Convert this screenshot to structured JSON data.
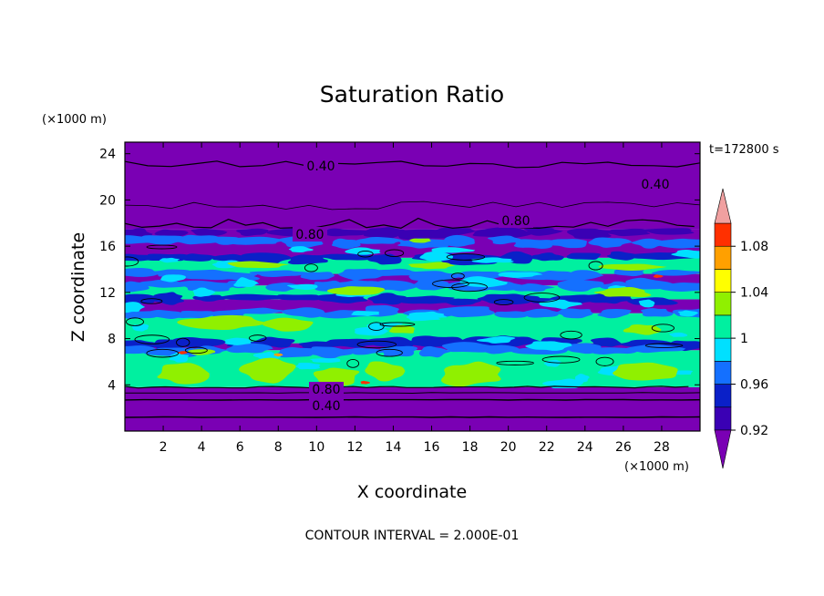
{
  "chart_data": {
    "type": "heatmap",
    "title": "Saturation Ratio",
    "xlabel": "X coordinate",
    "ylabel": "Z coordinate",
    "x_unit": "(×1000 m)",
    "y_unit": "(×1000 m)",
    "time_label": "t=172800 s",
    "footnote": "CONTOUR INTERVAL = 2.000E-01",
    "xlim": [
      0,
      30
    ],
    "ylim": [
      0,
      25
    ],
    "x_ticks": [
      "2",
      "4",
      "6",
      "8",
      "10",
      "12",
      "14",
      "16",
      "18",
      "20",
      "22",
      "24",
      "26",
      "28"
    ],
    "y_ticks": [
      "4",
      "8",
      "12",
      "16",
      "20",
      "24"
    ],
    "colorbar": {
      "levels": [
        0.92,
        0.94,
        0.96,
        0.98,
        1.0,
        1.02,
        1.04,
        1.06,
        1.08,
        1.1
      ],
      "tick_labels": [
        "0.92",
        "0.96",
        "1",
        "1.04",
        "1.08"
      ],
      "colors": [
        "#7a00b4",
        "#3a00b4",
        "#0a20c8",
        "#1470ff",
        "#00e0ff",
        "#00f0a0",
        "#90f000",
        "#ffff00",
        "#ffa000",
        "#ff3000",
        "#f0a0a0"
      ],
      "extend": "both"
    },
    "contour_labels": [
      "0.40",
      "0.40",
      "0.80",
      "0.80",
      "0.80",
      "0.40"
    ],
    "bands": [
      {
        "z": [
          0.0,
          3.0
        ],
        "color": "#7a00b4"
      },
      {
        "z": [
          3.0,
          3.8
        ],
        "color": "#7a00b4"
      },
      {
        "z": [
          3.8,
          7.0
        ],
        "color": "#00f0a0"
      },
      {
        "z": [
          7.0,
          7.6
        ],
        "color": "#7a00b4"
      },
      {
        "z": [
          7.6,
          10.2
        ],
        "color": "#00f0a0"
      },
      {
        "z": [
          10.2,
          11.4
        ],
        "color": "#7a00b4"
      },
      {
        "z": [
          11.4,
          12.6
        ],
        "color": "#00f0a0"
      },
      {
        "z": [
          12.6,
          13.6
        ],
        "color": "#7a00b4"
      },
      {
        "z": [
          13.6,
          15.0
        ],
        "color": "#00f0a0"
      },
      {
        "z": [
          15.0,
          17.5
        ],
        "color": "#7a00b4"
      },
      {
        "z": [
          17.5,
          25.0
        ],
        "color": "#7a00b4"
      }
    ]
  }
}
